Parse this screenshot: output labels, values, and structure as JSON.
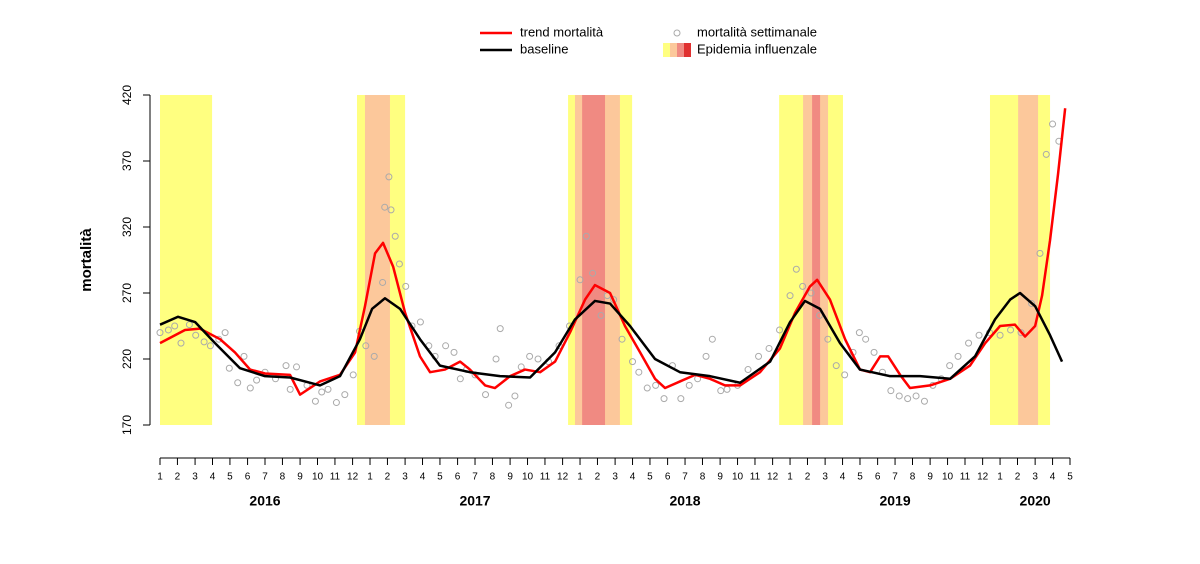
{
  "chart_data": {
    "type": "line",
    "ylabel": "mortalità",
    "xlim": [
      2016,
      2020.333
    ],
    "ylim": [
      170,
      420
    ],
    "yticks": [
      170,
      220,
      270,
      320,
      370,
      420
    ],
    "xticks": [
      {
        "value": 2016,
        "label": "1"
      },
      {
        "value": 2016.083,
        "label": "2"
      },
      {
        "value": 2016.167,
        "label": "3"
      },
      {
        "value": 2016.25,
        "label": "4"
      },
      {
        "value": 2016.333,
        "label": "5"
      },
      {
        "value": 2016.417,
        "label": "6"
      },
      {
        "value": 2016.5,
        "label": "7"
      },
      {
        "value": 2016.583,
        "label": "8"
      },
      {
        "value": 2016.667,
        "label": "9"
      },
      {
        "value": 2016.75,
        "label": "10"
      },
      {
        "value": 2016.833,
        "label": "11"
      },
      {
        "value": 2016.917,
        "label": "12"
      },
      {
        "value": 2017,
        "label": "1"
      },
      {
        "value": 2017.083,
        "label": "2"
      },
      {
        "value": 2017.167,
        "label": "3"
      },
      {
        "value": 2017.25,
        "label": "4"
      },
      {
        "value": 2017.333,
        "label": "5"
      },
      {
        "value": 2017.417,
        "label": "6"
      },
      {
        "value": 2017.5,
        "label": "7"
      },
      {
        "value": 2017.583,
        "label": "8"
      },
      {
        "value": 2017.667,
        "label": "9"
      },
      {
        "value": 2017.75,
        "label": "10"
      },
      {
        "value": 2017.833,
        "label": "11"
      },
      {
        "value": 2017.917,
        "label": "12"
      },
      {
        "value": 2018,
        "label": "1"
      },
      {
        "value": 2018.083,
        "label": "2"
      },
      {
        "value": 2018.167,
        "label": "3"
      },
      {
        "value": 2018.25,
        "label": "4"
      },
      {
        "value": 2018.333,
        "label": "5"
      },
      {
        "value": 2018.417,
        "label": "6"
      },
      {
        "value": 2018.5,
        "label": "7"
      },
      {
        "value": 2018.583,
        "label": "8"
      },
      {
        "value": 2018.667,
        "label": "9"
      },
      {
        "value": 2018.75,
        "label": "10"
      },
      {
        "value": 2018.833,
        "label": "11"
      },
      {
        "value": 2018.917,
        "label": "12"
      },
      {
        "value": 2019,
        "label": "1"
      },
      {
        "value": 2019.083,
        "label": "2"
      },
      {
        "value": 2019.167,
        "label": "3"
      },
      {
        "value": 2019.25,
        "label": "4"
      },
      {
        "value": 2019.333,
        "label": "5"
      },
      {
        "value": 2019.417,
        "label": "6"
      },
      {
        "value": 2019.5,
        "label": "7"
      },
      {
        "value": 2019.583,
        "label": "8"
      },
      {
        "value": 2019.667,
        "label": "9"
      },
      {
        "value": 2019.75,
        "label": "10"
      },
      {
        "value": 2019.833,
        "label": "11"
      },
      {
        "value": 2019.917,
        "label": "12"
      },
      {
        "value": 2020,
        "label": "1"
      },
      {
        "value": 2020.083,
        "label": "2"
      },
      {
        "value": 2020.167,
        "label": "3"
      },
      {
        "value": 2020.25,
        "label": "4"
      },
      {
        "value": 2020.333,
        "label": "5"
      }
    ],
    "year_labels": [
      {
        "value": 2016.5,
        "label": "2016"
      },
      {
        "value": 2017.5,
        "label": "2017"
      },
      {
        "value": 2018.5,
        "label": "2018"
      },
      {
        "value": 2019.5,
        "label": "2019"
      },
      {
        "value": 2020.167,
        "label": "2020"
      }
    ],
    "epidemic_label": "Epidemia influenzale",
    "epidemic_colors": [
      "#ffff80",
      "#fcc89b",
      "#f08a82",
      "#e03030"
    ],
    "epidemic_bands": [
      {
        "start": 2016,
        "end": 2016.248,
        "level": 0
      },
      {
        "start": 2016.938,
        "end": 2017.167,
        "level": 0
      },
      {
        "start": 2016.976,
        "end": 2017.095,
        "level": 1
      },
      {
        "start": 2017.943,
        "end": 2018.248,
        "level": 0
      },
      {
        "start": 2017.976,
        "end": 2018.19,
        "level": 1
      },
      {
        "start": 2018.01,
        "end": 2018.119,
        "level": 2
      },
      {
        "start": 2018.948,
        "end": 2019.252,
        "level": 0
      },
      {
        "start": 2019.062,
        "end": 2019.181,
        "level": 1
      },
      {
        "start": 2019.105,
        "end": 2019.143,
        "level": 2
      },
      {
        "start": 2019.952,
        "end": 2020.238,
        "level": 0
      },
      {
        "start": 2020.086,
        "end": 2020.181,
        "level": 1
      }
    ],
    "scatter": {
      "name": "mortalità settimanale",
      "color": "#aaaaaa",
      "x": [
        2016.0,
        2016.04,
        2016.07,
        2016.1,
        2016.14,
        2016.17,
        2016.21,
        2016.24,
        2016.28,
        2016.31,
        2016.33,
        2016.37,
        2016.4,
        2016.43,
        2016.46,
        2016.5,
        2016.55,
        2016.6,
        2016.62,
        2016.65,
        2016.7,
        2016.74,
        2016.77,
        2016.8,
        2016.84,
        2016.88,
        2016.92,
        2016.95,
        2016.98,
        2017.02,
        2017.06,
        2017.07,
        2017.09,
        2017.1,
        2017.12,
        2017.14,
        2017.17,
        2017.2,
        2017.24,
        2017.28,
        2017.31,
        2017.36,
        2017.4,
        2017.43,
        2017.46,
        2017.5,
        2017.55,
        2017.6,
        2017.62,
        2017.66,
        2017.69,
        2017.72,
        2017.76,
        2017.8,
        2017.85,
        2017.9,
        2017.95,
        2018.0,
        2018.03,
        2018.06,
        2018.1,
        2018.13,
        2018.16,
        2018.2,
        2018.25,
        2018.28,
        2018.32,
        2018.36,
        2018.4,
        2018.44,
        2018.48,
        2018.52,
        2018.56,
        2018.6,
        2018.63,
        2018.67,
        2018.7,
        2018.75,
        2018.8,
        2018.85,
        2018.9,
        2018.95,
        2019.0,
        2019.03,
        2019.06,
        2019.1,
        2019.14,
        2019.18,
        2019.22,
        2019.26,
        2019.3,
        2019.33,
        2019.36,
        2019.4,
        2019.44,
        2019.48,
        2019.52,
        2019.56,
        2019.6,
        2019.64,
        2019.68,
        2019.72,
        2019.76,
        2019.8,
        2019.85,
        2019.9,
        2019.95,
        2020.0,
        2020.05,
        2020.1,
        2020.15,
        2020.19,
        2020.22,
        2020.25,
        2020.28
      ],
      "values": [
        240,
        242,
        245,
        232,
        246,
        238,
        233,
        230,
        235,
        240,
        213,
        202,
        222,
        198,
        204,
        210,
        205,
        215,
        197,
        214,
        200,
        188,
        195,
        197,
        187,
        193,
        208,
        241,
        230,
        222,
        278,
        335,
        358,
        333,
        313,
        292,
        275,
        245,
        248,
        230,
        222,
        230,
        225,
        205,
        212,
        208,
        193,
        220,
        243,
        185,
        192,
        214,
        222,
        220,
        218,
        230,
        245,
        280,
        313,
        285,
        253,
        268,
        265,
        235,
        218,
        210,
        198,
        200,
        190,
        215,
        190,
        200,
        205,
        222,
        235,
        196,
        197,
        200,
        212,
        222,
        228,
        242,
        268,
        288,
        275,
        270,
        253,
        235,
        215,
        208,
        225,
        240,
        235,
        225,
        210,
        196,
        192,
        190,
        192,
        188,
        200,
        205,
        215,
        222,
        232,
        238,
        240,
        238,
        242,
        240,
        262,
        300,
        375,
        398,
        385
      ]
    },
    "series": [
      {
        "name": "trend mortalità",
        "color": "#ff0000",
        "x": [
          2016.0,
          2016.119,
          2016.19,
          2016.286,
          2016.357,
          2016.429,
          2016.5,
          2016.619,
          2016.667,
          2016.762,
          2016.857,
          2016.929,
          2016.976,
          2017.024,
          2017.062,
          2017.11,
          2017.167,
          2017.238,
          2017.286,
          2017.357,
          2017.429,
          2017.476,
          2017.548,
          2017.595,
          2017.667,
          2017.738,
          2017.81,
          2017.881,
          2017.952,
          2018.024,
          2018.071,
          2018.143,
          2018.214,
          2018.286,
          2018.357,
          2018.405,
          2018.476,
          2018.548,
          2018.619,
          2018.69,
          2018.762,
          2018.857,
          2018.952,
          2019.024,
          2019.095,
          2019.129,
          2019.19,
          2019.262,
          2019.333,
          2019.381,
          2019.429,
          2019.467,
          2019.524,
          2019.571,
          2019.667,
          2019.762,
          2019.857,
          2019.929,
          2020.0,
          2020.071,
          2020.119,
          2020.167,
          2020.2,
          2020.238,
          2020.276,
          2020.31
        ],
        "values": [
          232,
          242,
          243,
          235,
          225,
          212,
          209,
          208,
          193,
          203,
          208,
          225,
          260,
          300,
          308,
          290,
          255,
          222,
          210,
          212,
          218,
          212,
          200,
          198,
          207,
          212,
          210,
          218,
          240,
          265,
          276,
          270,
          245,
          225,
          205,
          198,
          203,
          208,
          205,
          200,
          200,
          210,
          228,
          255,
          275,
          280,
          265,
          235,
          212,
          210,
          222,
          222,
          208,
          198,
          200,
          205,
          215,
          232,
          245,
          246,
          237,
          245,
          268,
          310,
          360,
          410
        ]
      },
      {
        "name": "baseline",
        "color": "#000000",
        "x": [
          2016.0,
          2016.086,
          2016.167,
          2016.262,
          2016.381,
          2016.5,
          2016.619,
          2016.762,
          2016.857,
          2016.952,
          2017.01,
          2017.071,
          2017.143,
          2017.238,
          2017.333,
          2017.476,
          2017.619,
          2017.762,
          2017.881,
          2017.976,
          2018.071,
          2018.143,
          2018.238,
          2018.357,
          2018.476,
          2018.619,
          2018.762,
          2018.905,
          2019.0,
          2019.071,
          2019.143,
          2019.238,
          2019.333,
          2019.476,
          2019.619,
          2019.762,
          2019.881,
          2019.976,
          2020.048,
          2020.095,
          2020.167,
          2020.238,
          2020.295
        ],
        "values": [
          246,
          252,
          248,
          232,
          213,
          207,
          206,
          200,
          207,
          235,
          258,
          266,
          258,
          235,
          215,
          210,
          207,
          206,
          225,
          250,
          264,
          262,
          245,
          220,
          210,
          207,
          202,
          218,
          248,
          264,
          258,
          232,
          212,
          207,
          207,
          205,
          222,
          250,
          265,
          270,
          260,
          238,
          218
        ]
      }
    ]
  }
}
